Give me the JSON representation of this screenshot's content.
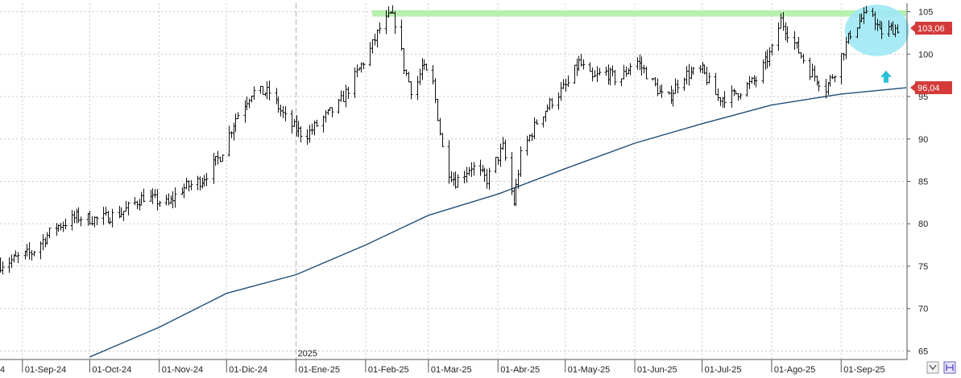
{
  "chart_data": {
    "type": "line",
    "title": "",
    "xlabel": "",
    "ylabel": "",
    "ylim": [
      64,
      106
    ],
    "y_ticks": [
      65,
      70,
      75,
      80,
      85,
      90,
      95,
      100,
      105
    ],
    "x_tick_labels": [
      "01-Sep-24",
      "01-Oct-24",
      "01-Nov-24",
      "01-Dic-24",
      "01-Ene-25",
      "01-Feb-25",
      "01-Mar-25",
      "01-Abr-25",
      "01-May-25",
      "01-Jun-25",
      "01-Jul-25",
      "01-Ago-25",
      "01-Sep-25"
    ],
    "x_tick_dates": [
      "2024-09-01",
      "2024-10-01",
      "2024-11-01",
      "2024-12-01",
      "2025-01-01",
      "2025-02-01",
      "2025-03-01",
      "2025-04-01",
      "2025-05-01",
      "2025-06-01",
      "2025-07-01",
      "2025-08-01",
      "2025-09-01"
    ],
    "x_range": [
      "2024-08-22",
      "2025-09-30"
    ],
    "year_separator": {
      "date": "2025-01-01",
      "label": "2025"
    },
    "left_edge_partial_label": "4",
    "grid": true,
    "series": [
      {
        "kind": "price",
        "points": [
          [
            "2024-08-22",
            75.2
          ],
          [
            "2024-09-05",
            76.6
          ],
          [
            "2024-09-15",
            79.5
          ],
          [
            "2024-09-25",
            80.8
          ],
          [
            "2024-10-05",
            80.5
          ],
          [
            "2024-10-15",
            81.3
          ],
          [
            "2024-10-25",
            83.2
          ],
          [
            "2024-11-05",
            82.3
          ],
          [
            "2024-11-10",
            84.0
          ],
          [
            "2024-11-20",
            85.2
          ],
          [
            "2024-11-28",
            88.0
          ],
          [
            "2024-12-05",
            92.5
          ],
          [
            "2024-12-12",
            95.5
          ],
          [
            "2024-12-20",
            95.5
          ],
          [
            "2024-12-28",
            92.0
          ],
          [
            "2025-01-05",
            90.3
          ],
          [
            "2025-01-12",
            92.2
          ],
          [
            "2025-01-20",
            94.0
          ],
          [
            "2025-01-27",
            97.3
          ],
          [
            "2025-02-03",
            100.5
          ],
          [
            "2025-02-07",
            103.0
          ],
          [
            "2025-02-12",
            104.6
          ],
          [
            "2025-02-15",
            103.4
          ],
          [
            "2025-02-18",
            98.5
          ],
          [
            "2025-02-22",
            95.0
          ],
          [
            "2025-02-26",
            98.5
          ],
          [
            "2025-03-03",
            96.5
          ],
          [
            "2025-03-08",
            87.0
          ],
          [
            "2025-03-13",
            85.0
          ],
          [
            "2025-03-20",
            86.8
          ],
          [
            "2025-03-27",
            85.2
          ],
          [
            "2025-04-03",
            89.0
          ],
          [
            "2025-04-08",
            82.5
          ],
          [
            "2025-04-11",
            88.0
          ],
          [
            "2025-04-18",
            92.0
          ],
          [
            "2025-04-25",
            94.5
          ],
          [
            "2025-05-02",
            96.5
          ],
          [
            "2025-05-07",
            99.0
          ],
          [
            "2025-05-13",
            97.0
          ],
          [
            "2025-05-18",
            98.0
          ],
          [
            "2025-05-25",
            96.8
          ],
          [
            "2025-06-01",
            99.5
          ],
          [
            "2025-06-08",
            97.0
          ],
          [
            "2025-06-15",
            94.3
          ],
          [
            "2025-06-22",
            97.5
          ],
          [
            "2025-07-01",
            98.0
          ],
          [
            "2025-07-08",
            94.8
          ],
          [
            "2025-07-15",
            95.2
          ],
          [
            "2025-07-25",
            97.0
          ],
          [
            "2025-08-01",
            100.5
          ],
          [
            "2025-08-05",
            104.0
          ],
          [
            "2025-08-12",
            100.8
          ],
          [
            "2025-08-18",
            98.0
          ],
          [
            "2025-08-25",
            96.0
          ],
          [
            "2025-08-30",
            98.5
          ],
          [
            "2025-09-05",
            102.5
          ],
          [
            "2025-09-10",
            104.2
          ],
          [
            "2025-09-15",
            104.8
          ],
          [
            "2025-09-18",
            102.5
          ],
          [
            "2025-09-23",
            103.0
          ],
          [
            "2025-09-28",
            103.1
          ]
        ]
      },
      {
        "kind": "moving-average",
        "color": "#1f4e79",
        "points": [
          [
            "2024-10-01",
            64.3
          ],
          [
            "2024-11-01",
            67.8
          ],
          [
            "2024-12-01",
            71.8
          ],
          [
            "2025-01-01",
            74.0
          ],
          [
            "2025-02-01",
            77.5
          ],
          [
            "2025-03-01",
            81.0
          ],
          [
            "2025-04-01",
            83.5
          ],
          [
            "2025-05-01",
            86.5
          ],
          [
            "2025-06-01",
            89.5
          ],
          [
            "2025-07-01",
            91.8
          ],
          [
            "2025-08-01",
            94.0
          ],
          [
            "2025-09-01",
            95.3
          ],
          [
            "2025-09-30",
            96.04
          ]
        ]
      }
    ],
    "annotations": [
      {
        "kind": "resistance-band",
        "y": 104.8,
        "date_from": "2025-02-04",
        "date_to": "2025-09-30",
        "color": "#b8f0b0"
      },
      {
        "kind": "highlight-circle",
        "center_date": "2025-09-17",
        "center_y": 102.8,
        "color": "#9fe8f5"
      },
      {
        "kind": "up-arrow",
        "date": "2025-09-21",
        "y": 97.3,
        "color": "#29c1d6"
      }
    ],
    "price_tags": [
      {
        "value": 103.06,
        "text": "103,06",
        "color": "#d43a3a"
      },
      {
        "value": 96.04,
        "text": "96,04",
        "color": "#d43a3a"
      }
    ]
  }
}
